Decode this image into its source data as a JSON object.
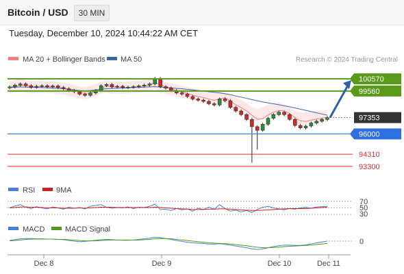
{
  "header": {
    "title": "Bitcoin / USD",
    "interval": "30 MIN",
    "datetime": "Tuesday, December 10, 2024 10:44:22 AM CET"
  },
  "credit": "Research © 2024 Trading Central",
  "colors": {
    "bollinger": "#f08080",
    "ma50": "#3a66a8",
    "resistance": "#5a9a1a",
    "current": "#333333",
    "support_blue": "#2f6fe0",
    "support_red": "#d23030",
    "rsi": "#4a7fd8",
    "rsi_9ma": "#d02020",
    "macd": "#4a7fd8",
    "macd_signal": "#4f9a20",
    "arrow": "#2f5fa8"
  },
  "chart_data": [
    {
      "type": "line",
      "panel": "price",
      "legend": [
        "MA 20 + Bollinger Bands",
        "MA 50"
      ],
      "x_ticks": [
        "Dec 8",
        "Dec 9",
        "Dec 10",
        "Dec 11"
      ],
      "levels": [
        {
          "value": 100570,
          "label": "100570",
          "kind": "resistance"
        },
        {
          "value": 99560,
          "label": "99560",
          "kind": "resistance"
        },
        {
          "value": 97353,
          "label": "97353",
          "kind": "current"
        },
        {
          "value": 96000,
          "label": "96000",
          "kind": "support_blue"
        },
        {
          "value": 94310,
          "label": "94310",
          "kind": "support_red"
        },
        {
          "value": 93300,
          "label": "93300",
          "kind": "support_red"
        }
      ],
      "price_path": [
        99900,
        100050,
        100150,
        100000,
        99880,
        99950,
        100000,
        99900,
        99980,
        99850,
        99750,
        99600,
        99500,
        99300,
        99200,
        99400,
        99600,
        100000,
        100100,
        99900,
        99950,
        99850,
        99880,
        99920,
        99980,
        100050,
        100150,
        100600,
        99920,
        99800,
        99600,
        99400,
        99300,
        99100,
        98900,
        98800,
        98700,
        98500,
        98400,
        98900,
        98750,
        98200,
        97900,
        97600,
        97200,
        96600,
        96300,
        96800,
        97300,
        97600,
        97800,
        97600,
        97200,
        96700,
        96500,
        96650,
        96900,
        97050,
        97200,
        97353
      ],
      "ma50_path": [
        99850,
        99870,
        99900,
        99880,
        99860,
        99850,
        99840,
        99820,
        99800,
        99780,
        99750,
        99700,
        99650,
        99600,
        99580,
        99600,
        99650,
        99700,
        99750,
        99780,
        99790,
        99800,
        99820,
        99840,
        99860,
        99880,
        99900,
        99920,
        99880,
        99860,
        99820,
        99780,
        99740,
        99700,
        99650,
        99600,
        99550,
        99500,
        99450,
        99400,
        99330,
        99250,
        99150,
        99050,
        98950,
        98850,
        98750,
        98650,
        98580,
        98500,
        98420,
        98330,
        98250,
        98150,
        98050,
        97950,
        97850,
        97750,
        97650,
        97550
      ],
      "projection": {
        "from": 97353,
        "to": 100570
      }
    },
    {
      "type": "line",
      "panel": "rsi",
      "legend": [
        "RSI",
        "9MA"
      ],
      "y_ticks": [
        "70",
        "50",
        "30"
      ],
      "series": [
        {
          "name": "RSI",
          "values": [
            50,
            56,
            60,
            52,
            48,
            54,
            50,
            47,
            53,
            50,
            46,
            52,
            49,
            51,
            47,
            55,
            58,
            60,
            52,
            49,
            51,
            50,
            53,
            48,
            52,
            51,
            55,
            62,
            45,
            46,
            42,
            48,
            44,
            47,
            40,
            49,
            45,
            52,
            46,
            60,
            48,
            40,
            43,
            38,
            42,
            36,
            45,
            52,
            55,
            50,
            47,
            44,
            48,
            46,
            50,
            52,
            49,
            53,
            54,
            55
          ]
        },
        {
          "name": "9MA",
          "values": [
            50,
            51,
            53,
            53,
            52,
            52,
            51,
            50,
            50,
            50,
            49,
            49,
            49,
            50,
            49,
            50,
            51,
            52,
            52,
            52,
            51,
            51,
            51,
            51,
            51,
            51,
            51,
            52,
            51,
            50,
            49,
            48,
            47,
            46,
            45,
            45,
            45,
            46,
            46,
            47,
            47,
            46,
            45,
            44,
            43,
            42,
            42,
            43,
            44,
            45,
            46,
            47,
            48,
            48,
            48,
            48,
            49,
            50,
            51,
            52
          ]
        }
      ]
    },
    {
      "type": "line",
      "panel": "macd",
      "legend": [
        "MACD",
        "MACD Signal"
      ],
      "y_ticks": [
        "0"
      ],
      "series": [
        {
          "name": "MACD",
          "values": [
            0.2,
            0.5,
            0.8,
            0.9,
            0.9,
            0.8,
            0.8,
            0.7,
            0.7,
            0.6,
            0.5,
            0.2,
            0.0,
            -0.2,
            -0.1,
            0.1,
            0.3,
            0.5,
            0.6,
            0.5,
            0.4,
            0.3,
            0.3,
            0.4,
            0.6,
            0.8,
            1.0,
            1.4,
            1.2,
            0.9,
            0.6,
            0.2,
            -0.1,
            -0.4,
            -0.6,
            -0.7,
            -0.8,
            -1.0,
            -1.0,
            -0.9,
            -1.1,
            -1.4,
            -1.7,
            -2.0,
            -2.3,
            -2.7,
            -2.9,
            -2.7,
            -2.3,
            -1.9,
            -1.6,
            -1.4,
            -1.4,
            -1.5,
            -1.5,
            -1.3,
            -1.0,
            -0.6,
            -0.3,
            0.0
          ]
        },
        {
          "name": "MACD Signal",
          "values": [
            0.1,
            0.2,
            0.4,
            0.6,
            0.7,
            0.7,
            0.7,
            0.7,
            0.7,
            0.6,
            0.6,
            0.5,
            0.4,
            0.2,
            0.1,
            0.1,
            0.1,
            0.2,
            0.3,
            0.4,
            0.4,
            0.4,
            0.4,
            0.4,
            0.4,
            0.5,
            0.6,
            0.8,
            0.9,
            0.9,
            0.8,
            0.6,
            0.4,
            0.2,
            0.0,
            -0.2,
            -0.4,
            -0.6,
            -0.7,
            -0.8,
            -0.9,
            -1.0,
            -1.2,
            -1.4,
            -1.6,
            -1.9,
            -2.1,
            -2.3,
            -2.3,
            -2.2,
            -2.1,
            -1.9,
            -1.8,
            -1.7,
            -1.6,
            -1.5,
            -1.4,
            -1.2,
            -1.0,
            -0.8
          ]
        }
      ]
    }
  ]
}
